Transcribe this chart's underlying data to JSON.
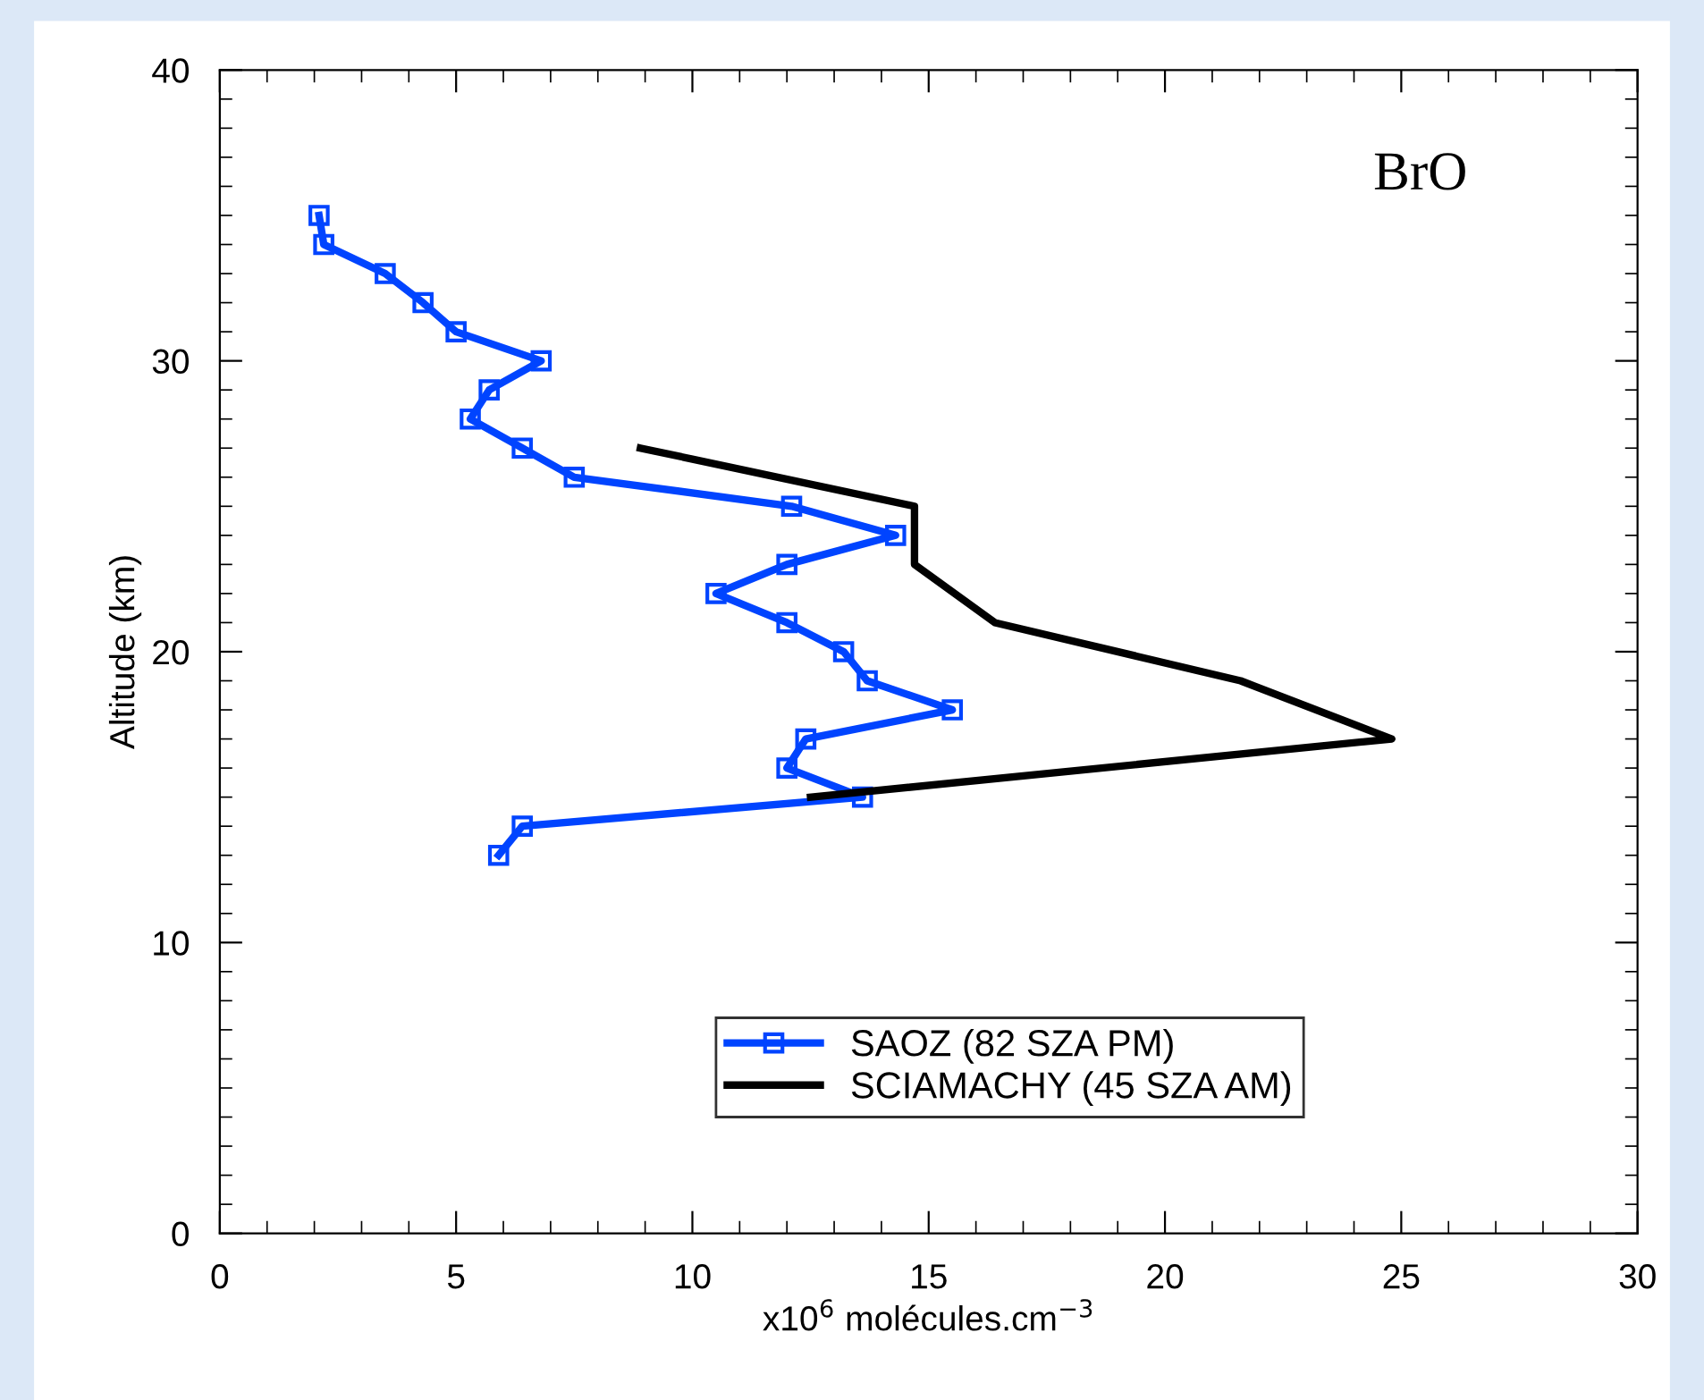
{
  "chart_data": {
    "type": "line",
    "xlabel": "x10$^{6}$ molécules.cm$^{−3}$",
    "ylabel": "Altitude (km)",
    "annotations": [
      "BrO"
    ],
    "xlim": [
      0,
      30
    ],
    "xticks": [
      0,
      5,
      10,
      15,
      20,
      25,
      30
    ],
    "ylim": [
      0,
      40
    ],
    "yticks": [
      0,
      10,
      20,
      30,
      40
    ],
    "grid": false,
    "legend": "bottom right",
    "series": [
      {
        "name": "SAOZ (82 SZA PM)",
        "color": "#0044ff",
        "marker": "square",
        "x": [
          2.1,
          2.2,
          3.5,
          4.3,
          5.0,
          6.8,
          5.7,
          5.3,
          6.4,
          7.5,
          12.1,
          14.3,
          12.0,
          10.5,
          12.0,
          13.2,
          13.7,
          15.5,
          12.4,
          12.0,
          13.6,
          6.4,
          5.9
        ],
        "values": [
          35,
          34,
          33,
          32,
          31,
          30,
          29,
          28,
          27,
          26,
          25,
          24,
          23,
          22,
          21,
          20,
          19,
          18,
          17,
          16,
          15,
          14,
          13
        ]
      },
      {
        "name": "SCIAMACHY (45 SZA AM)",
        "color": "#000000",
        "marker": "none",
        "x": [
          8.9,
          14.7,
          14.7,
          16.4,
          21.6,
          24.8,
          12.5
        ],
        "values": [
          27,
          25,
          23,
          21,
          19,
          17,
          15
        ]
      }
    ]
  }
}
